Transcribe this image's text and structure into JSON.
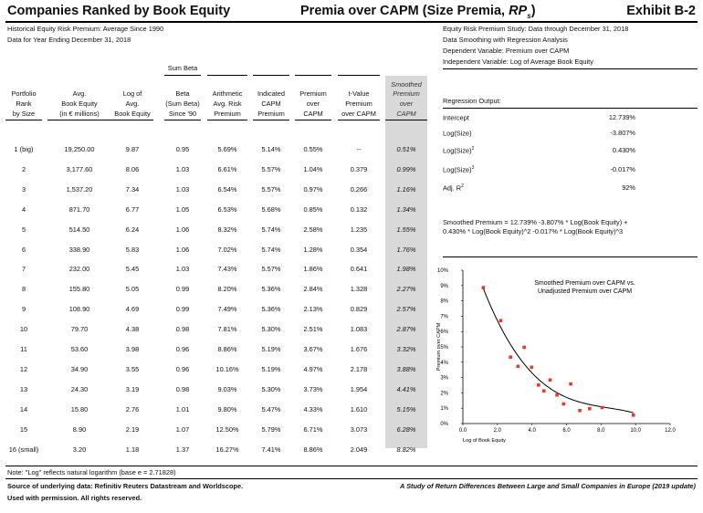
{
  "header": {
    "left_title": "Companies Ranked by Book Equity",
    "center_title_main": "Premia over CAPM (Size Premia, ",
    "center_title_rp": "RP",
    "center_title_sub": "s",
    "center_title_end": ")",
    "exhibit": "Exhibit B-2"
  },
  "info_left": {
    "line1": "Historical Equity Risk Premium: Average Since 1990",
    "line2": "Data for Year Ending December 31, 2018"
  },
  "info_right": {
    "line1": "Equity Risk Premium Study: Data through December 31, 2018",
    "line2": "Data Smoothing with Regression Analysis",
    "line3": "Dependent Variable: Premium over CAPM",
    "line4": "Independent Variable: Log of Average Book Equity"
  },
  "table": {
    "headers": {
      "portfolio": [
        "Portfolio",
        "Rank",
        "by Size"
      ],
      "avg": [
        "Avg.",
        "Book Equity",
        "(in € millions)"
      ],
      "log": [
        "Log of",
        "Avg.",
        "Book Equity"
      ],
      "beta": [
        "Sum Beta",
        "Beta",
        "(Sum Beta)",
        "Since '90"
      ],
      "arith": [
        "Arithmetic",
        "Avg. Risk",
        "Premium"
      ],
      "capm": [
        "Indicated",
        "CAPM",
        "Premium"
      ],
      "prem": [
        "Premium",
        "over",
        "CAPM"
      ],
      "tval": [
        "t-Value",
        "Premium",
        "over CAPM"
      ],
      "smooth": [
        "Smoothed",
        "Premium",
        "over",
        "CAPM"
      ]
    },
    "rows": [
      {
        "rank": "1 (big)",
        "book": "19,250.00",
        "log": "9.87",
        "beta": "0.95",
        "arith": "5.69%",
        "capm": "5.14%",
        "prem": "0.55%",
        "tval": "--",
        "smooth": "0.51%"
      },
      {
        "rank": "2",
        "book": "3,177.60",
        "log": "8.06",
        "beta": "1.03",
        "arith": "6.61%",
        "capm": "5.57%",
        "prem": "1.04%",
        "tval": "0.379",
        "smooth": "0.99%"
      },
      {
        "rank": "3",
        "book": "1,537.20",
        "log": "7.34",
        "beta": "1.03",
        "arith": "6.54%",
        "capm": "5.57%",
        "prem": "0.97%",
        "tval": "0.266",
        "smooth": "1.16%"
      },
      {
        "rank": "4",
        "book": "871.70",
        "log": "6.77",
        "beta": "1.05",
        "arith": "6.53%",
        "capm": "5.68%",
        "prem": "0.85%",
        "tval": "0.132",
        "smooth": "1.34%"
      },
      {
        "rank": "5",
        "book": "514.50",
        "log": "6.24",
        "beta": "1.06",
        "arith": "8.32%",
        "capm": "5.74%",
        "prem": "2.58%",
        "tval": "1.235",
        "smooth": "1.55%"
      },
      {
        "rank": "6",
        "book": "338.90",
        "log": "5.83",
        "beta": "1.06",
        "arith": "7.02%",
        "capm": "5.74%",
        "prem": "1.28%",
        "tval": "0.354",
        "smooth": "1.76%"
      },
      {
        "rank": "7",
        "book": "232.00",
        "log": "5.45",
        "beta": "1.03",
        "arith": "7.43%",
        "capm": "5.57%",
        "prem": "1.86%",
        "tval": "0.641",
        "smooth": "1.98%"
      },
      {
        "rank": "8",
        "book": "155.80",
        "log": "5.05",
        "beta": "0.99",
        "arith": "8.20%",
        "capm": "5.36%",
        "prem": "2.84%",
        "tval": "1.328",
        "smooth": "2.27%"
      },
      {
        "rank": "9",
        "book": "108.90",
        "log": "4.69",
        "beta": "0.99",
        "arith": "7.49%",
        "capm": "5.36%",
        "prem": "2.13%",
        "tval": "0.829",
        "smooth": "2.57%"
      },
      {
        "rank": "10",
        "book": "79.70",
        "log": "4.38",
        "beta": "0.98",
        "arith": "7.81%",
        "capm": "5.30%",
        "prem": "2.51%",
        "tval": "1.083",
        "smooth": "2.87%"
      },
      {
        "rank": "11",
        "book": "53.60",
        "log": "3.98",
        "beta": "0.96",
        "arith": "8.86%",
        "capm": "5.19%",
        "prem": "3.67%",
        "tval": "1.676",
        "smooth": "3.32%"
      },
      {
        "rank": "12",
        "book": "34.90",
        "log": "3.55",
        "beta": "0.96",
        "arith": "10.16%",
        "capm": "5.19%",
        "prem": "4.97%",
        "tval": "2.178",
        "smooth": "3.88%"
      },
      {
        "rank": "13",
        "book": "24.30",
        "log": "3.19",
        "beta": "0.98",
        "arith": "9.03%",
        "capm": "5.30%",
        "prem": "3.73%",
        "tval": "1.954",
        "smooth": "4.41%"
      },
      {
        "rank": "14",
        "book": "15.80",
        "log": "2.76",
        "beta": "1.01",
        "arith": "9.80%",
        "capm": "5.47%",
        "prem": "4.33%",
        "tval": "1.610",
        "smooth": "5.15%"
      },
      {
        "rank": "15",
        "book": "8.90",
        "log": "2.19",
        "beta": "1.07",
        "arith": "12.50%",
        "capm": "5.79%",
        "prem": "6.71%",
        "tval": "3.073",
        "smooth": "6.28%"
      },
      {
        "rank": "16 (small)",
        "book": "3.20",
        "log": "1.18",
        "beta": "1.37",
        "arith": "16.27%",
        "capm": "7.41%",
        "prem": "8.86%",
        "tval": "2.049",
        "smooth": "8.82%"
      }
    ]
  },
  "regression": {
    "heading": "Regression Output:",
    "rows": [
      {
        "label": "Intercept",
        "sup": "",
        "value": "12.739%"
      },
      {
        "label": "Log(Size)",
        "sup": "",
        "value": "-3.807%"
      },
      {
        "label": "Log(Size)",
        "sup": "2",
        "value": "0.430%"
      },
      {
        "label": "Log(Size)",
        "sup": "3",
        "value": "-0.017%"
      },
      {
        "label": "Adj. R",
        "sup": "2",
        "value": "92%"
      }
    ],
    "equation_line1": "Smoothed Premium  =  12.739%  -3.807% * Log(Book Equity) +",
    "equation_line2": "0.430% * Log(Book Equity)^2  -0.017% * Log(Book Equity)^3"
  },
  "chart_data": {
    "type": "scatter",
    "title": "Smoothed Premium over CAPM vs. Unadjusted Premium over CAPM",
    "title_line1": "Smoothed Premium over CAPM vs.",
    "title_line2": "Unadjusted Premium over CAPM",
    "xlabel": "Log of Book Equity",
    "ylabel": "Premium over CAPM",
    "xlim": [
      0,
      12
    ],
    "ylim": [
      0,
      10
    ],
    "x_ticks": [
      "0.0",
      "2.0",
      "4.0",
      "6.0",
      "8.0",
      "10.0",
      "12.0"
    ],
    "y_ticks": [
      "0%",
      "1%",
      "2%",
      "3%",
      "4%",
      "5%",
      "6%",
      "7%",
      "8%",
      "9%",
      "10%"
    ],
    "points_x": [
      9.87,
      8.06,
      7.34,
      6.77,
      6.24,
      5.83,
      5.45,
      5.05,
      4.69,
      4.38,
      3.98,
      3.55,
      3.19,
      2.76,
      2.19,
      1.18
    ],
    "points_y": [
      0.55,
      1.04,
      0.97,
      0.85,
      2.58,
      1.28,
      1.86,
      2.84,
      2.13,
      2.51,
      3.67,
      4.97,
      3.73,
      4.33,
      6.71,
      8.86
    ],
    "curve": {
      "intercept": 12.739,
      "b1": -3.807,
      "b2": 0.43,
      "b3": -0.017
    },
    "curve_xrange": [
      1.18,
      9.87
    ],
    "point_color": "#e8392b",
    "line_color": "#000000",
    "grid": false
  },
  "footer": {
    "note": "Note: \"Log\" reflects natural logarithm (base e = 2.71828)",
    "source": "Source of underlying data: Refinitiv Reuters Datastream and Worldscope.",
    "study": "A Study of Return Differences Between Large and Small Companies in Europe (2019 update)",
    "permission": "Used with permission. All rights reserved."
  }
}
